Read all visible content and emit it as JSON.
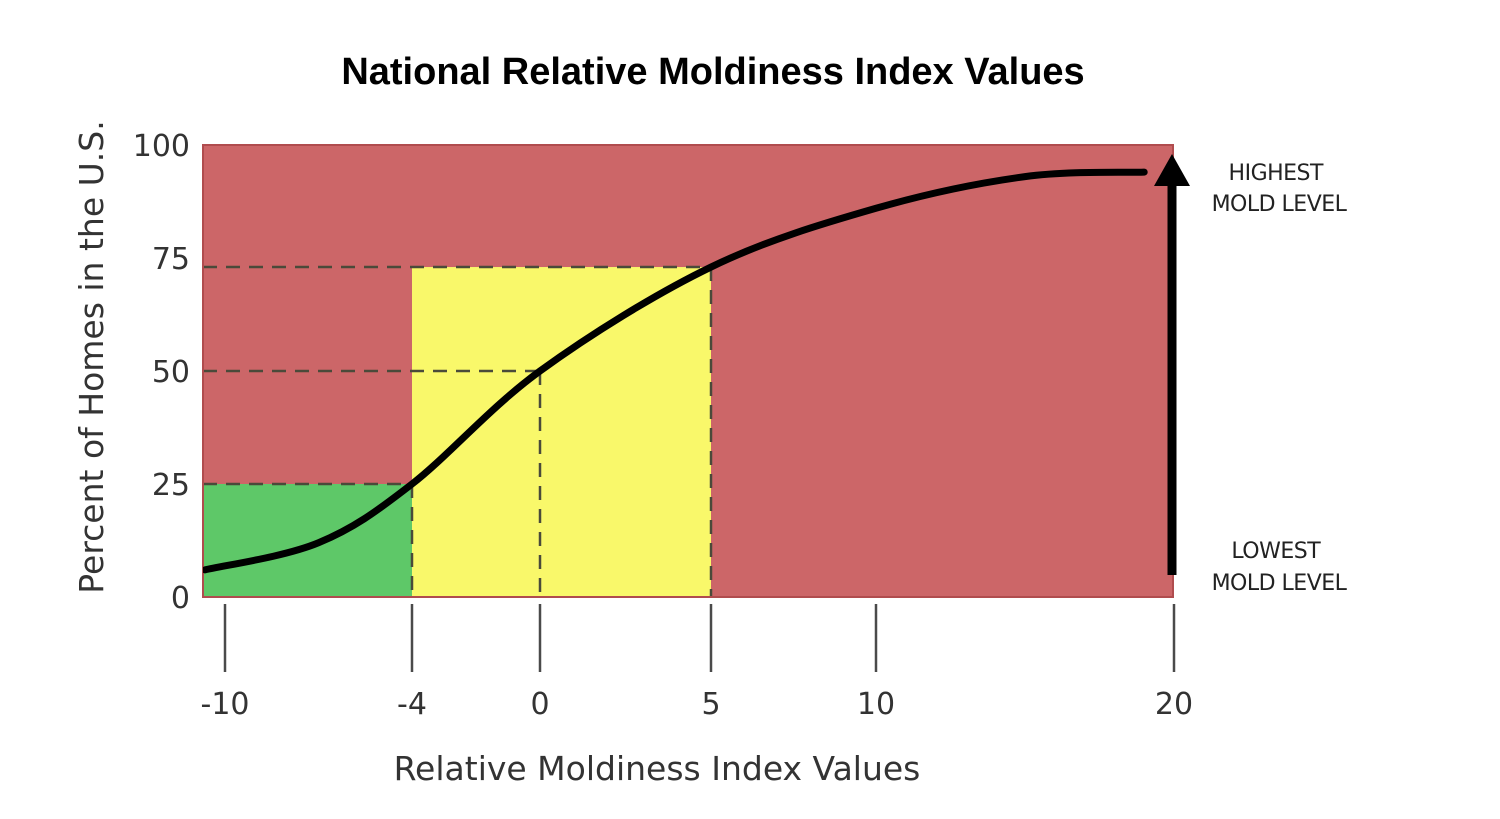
{
  "chart_data": {
    "type": "line",
    "title": "National Relative Moldiness Index Values",
    "xlabel": "Relative Moldiness Index Values",
    "ylabel": "Percent of Homes in the U.S.",
    "x_ticks": [
      "-10",
      "-4",
      "0",
      "5",
      "10",
      "20"
    ],
    "y_ticks": [
      "0",
      "25",
      "50",
      "75",
      "100"
    ],
    "ylim": [
      0,
      100
    ],
    "bands": [
      {
        "name": "green",
        "x_from": -10,
        "x_to": -4,
        "y_from": 0,
        "y_to": 25,
        "color": "#5ec868"
      },
      {
        "name": "yellow",
        "x_from": -4,
        "x_to": 5,
        "y_from": 0,
        "y_to": 73,
        "color": "#f9f86a"
      },
      {
        "name": "red",
        "color": "#cc6668"
      }
    ],
    "reference_lines": [
      {
        "x": -4,
        "y": 25
      },
      {
        "x": 0,
        "y": 50
      },
      {
        "x": 5,
        "y": 73
      }
    ],
    "series": [
      {
        "color": "#000000",
        "points": [
          {
            "x": -10,
            "y": 6
          },
          {
            "x": -7,
            "y": 12
          },
          {
            "x": -4,
            "y": 25
          },
          {
            "x": 0,
            "y": 50
          },
          {
            "x": 5,
            "y": 73
          },
          {
            "x": 10,
            "y": 86
          },
          {
            "x": 15,
            "y": 93
          },
          {
            "x": 19,
            "y": 94
          }
        ]
      }
    ],
    "annotations": {
      "top": [
        "HIGHEST",
        "MOLD LEVEL"
      ],
      "bottom": [
        "LOWEST",
        "MOLD LEVEL"
      ]
    }
  }
}
